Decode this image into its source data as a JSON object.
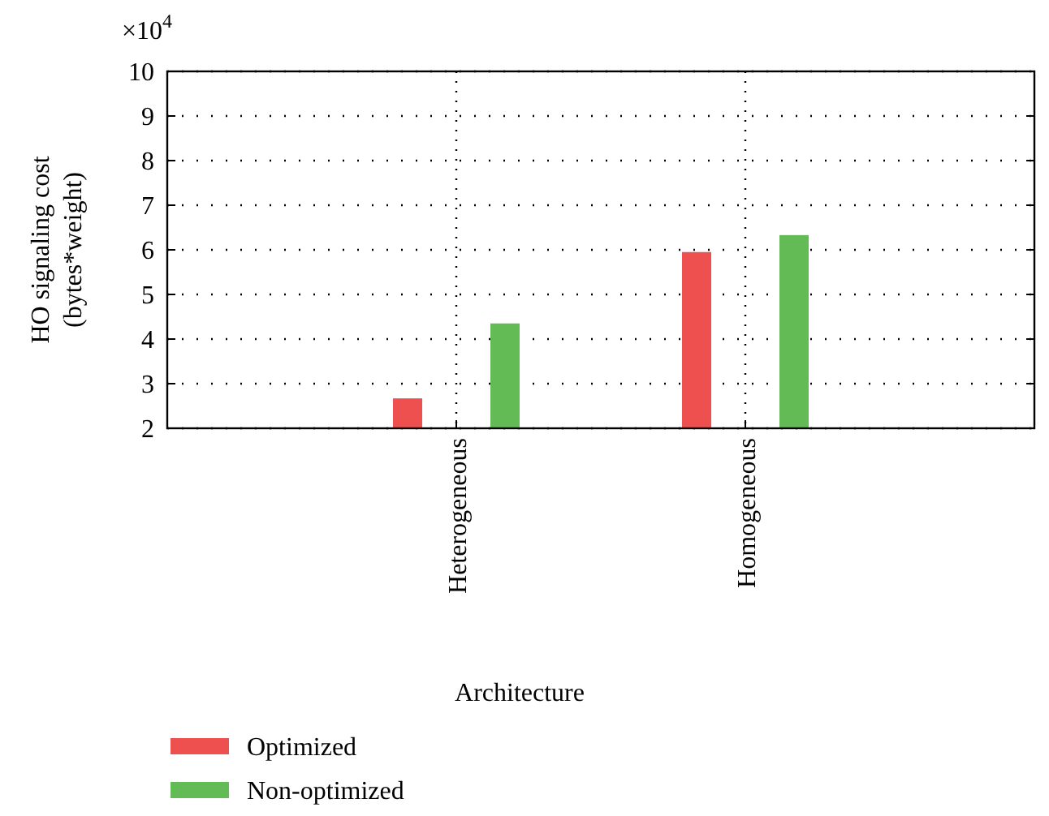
{
  "chart_data": {
    "type": "bar",
    "xlabel": "Architecture",
    "ylabel": "HO signaling cost\n(bytes*weight)",
    "annotations": [
      "×10$^{4}$"
    ],
    "categories": [
      "Heterogeneous",
      "Homogeneous"
    ],
    "series": [
      {
        "name": "Optimized",
        "color": "#ee5050",
        "values": [
          2.67,
          5.95
        ]
      },
      {
        "name": "Non-optimized",
        "color": "#62bb55",
        "values": [
          4.35,
          6.33
        ]
      }
    ],
    "ylim": [
      2,
      10
    ],
    "yticks": [
      2,
      3,
      4,
      5,
      6,
      7,
      8,
      9,
      10
    ],
    "grid": true,
    "legend": "bottom"
  }
}
